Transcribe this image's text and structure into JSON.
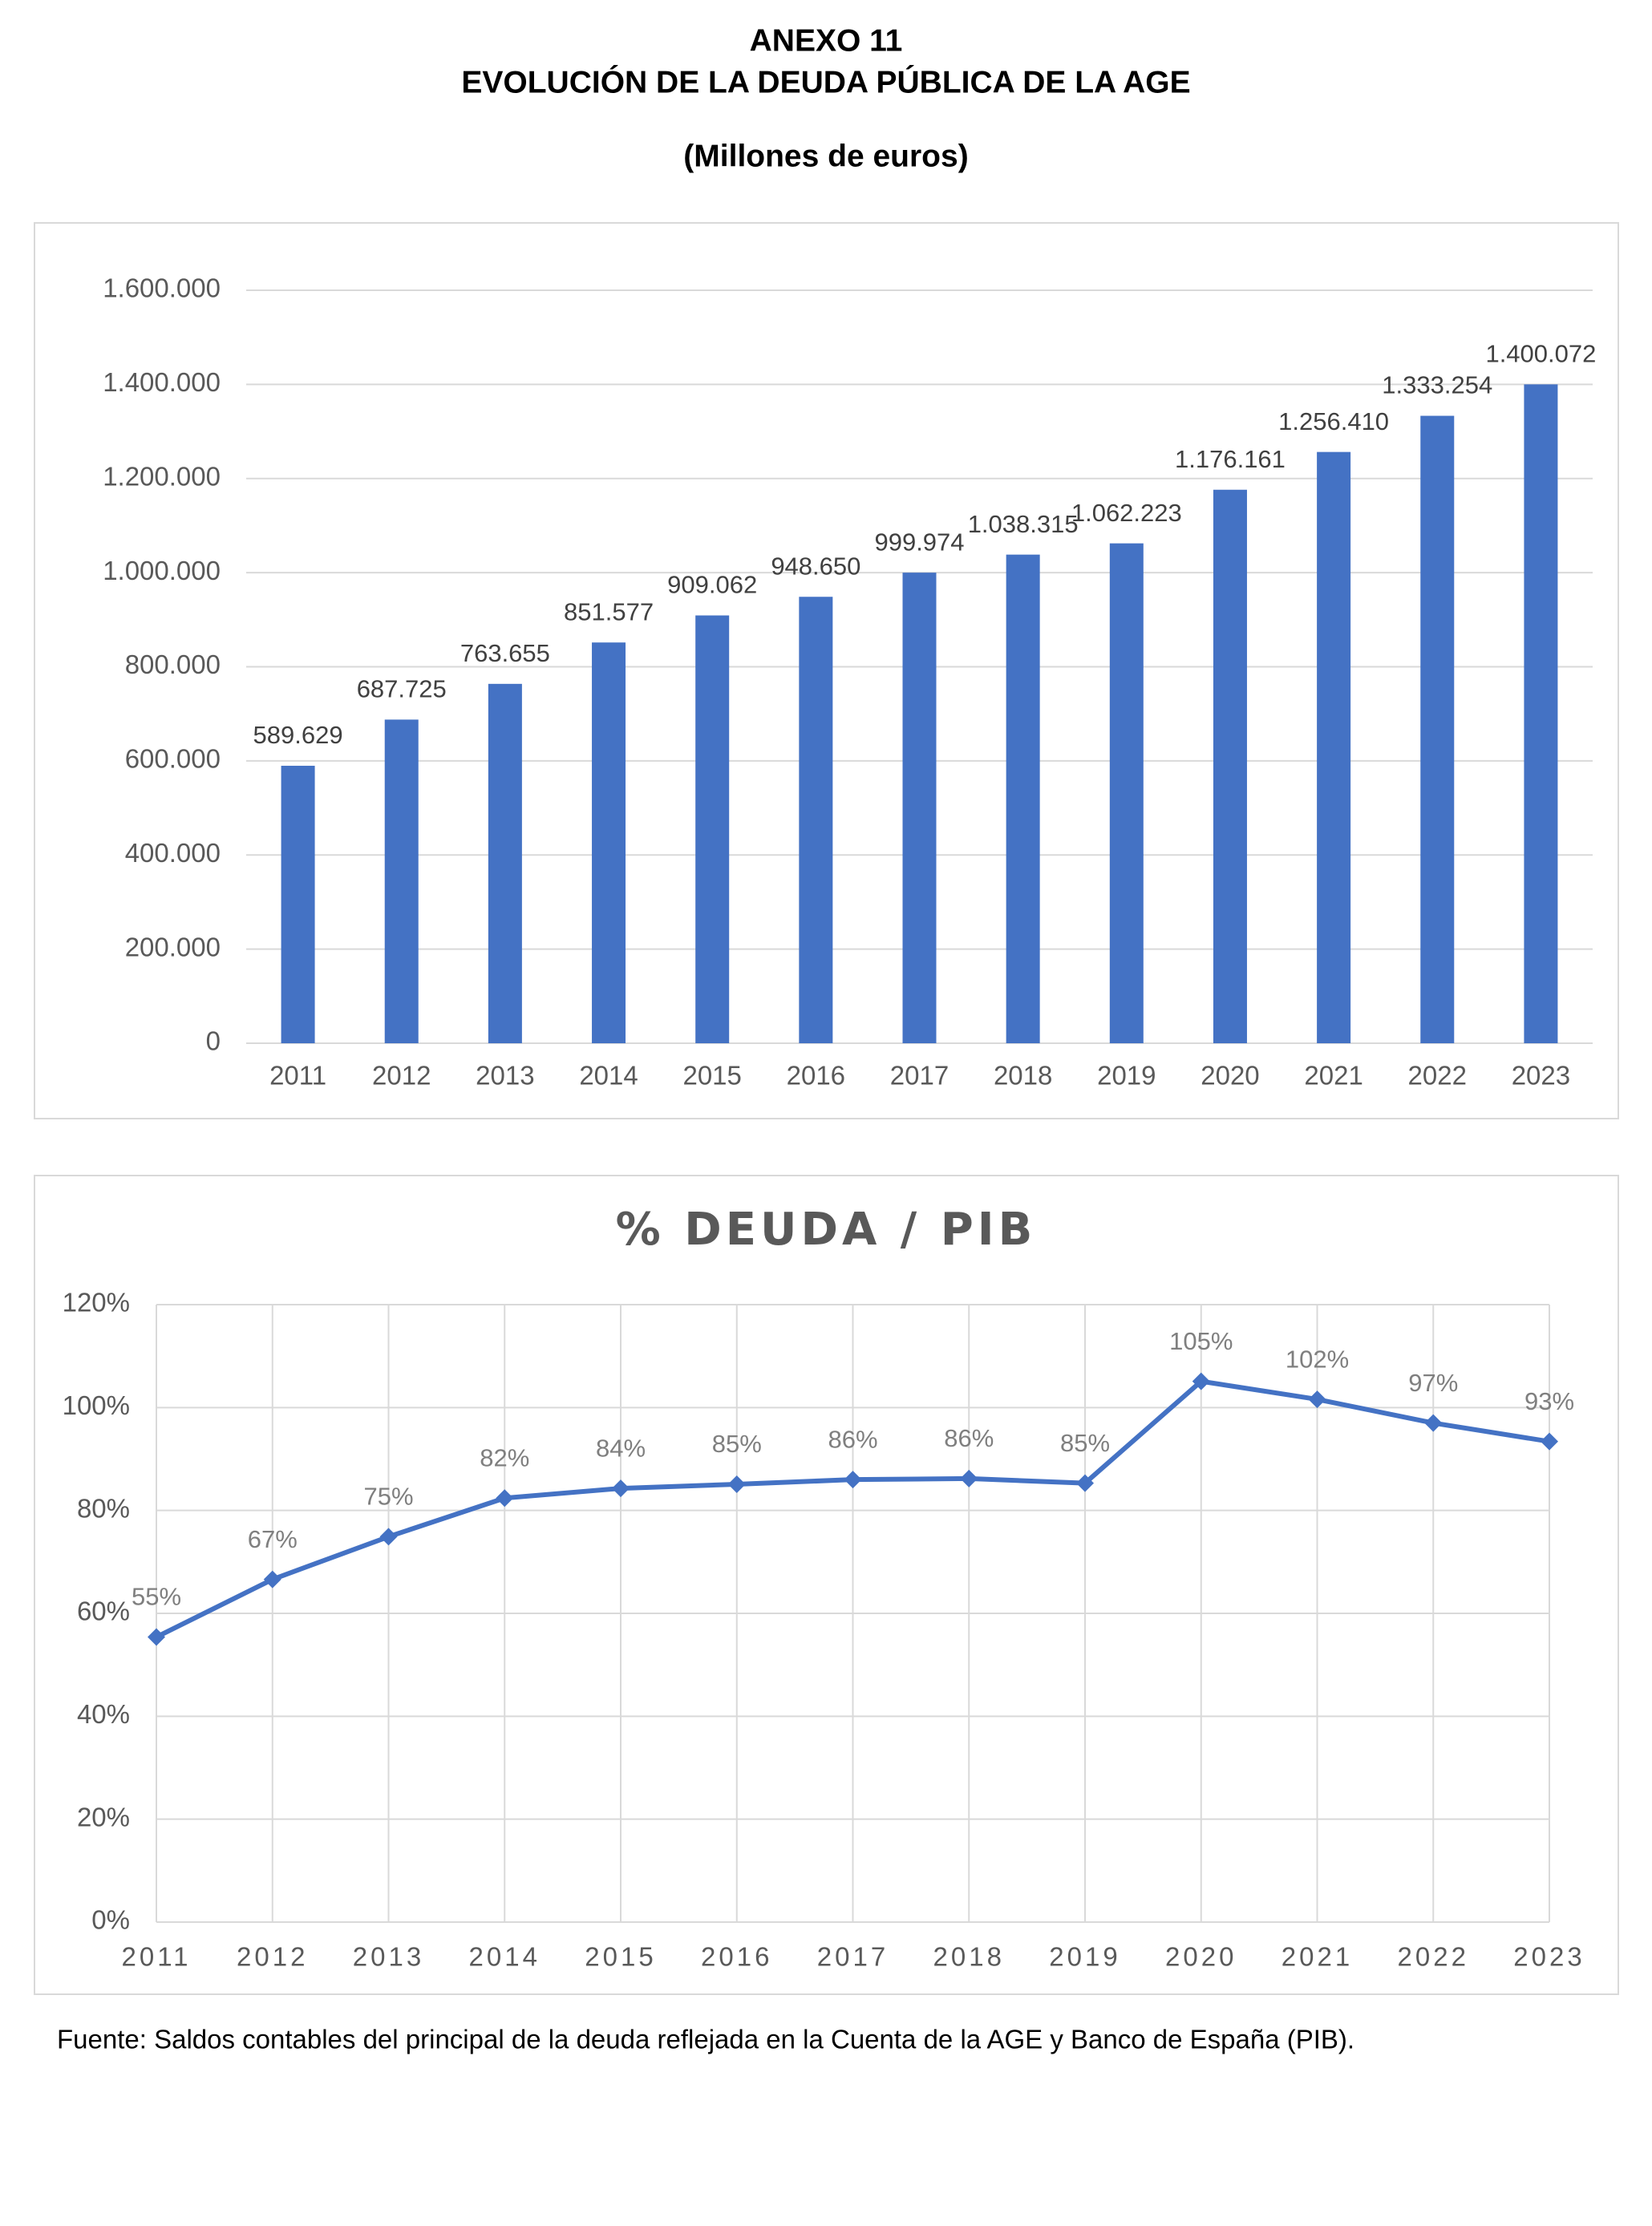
{
  "header": {
    "annex": "ANEXO 11",
    "title": "EVOLUCIÓN DE LA DEUDA PÚBLICA DE LA AGE",
    "subtitle": "(Millones de euros)"
  },
  "chart_data": [
    {
      "type": "bar",
      "categories": [
        "2011",
        "2012",
        "2013",
        "2014",
        "2015",
        "2016",
        "2017",
        "2018",
        "2019",
        "2020",
        "2021",
        "2022",
        "2023"
      ],
      "values": [
        589629,
        687725,
        763655,
        851577,
        909062,
        948650,
        999974,
        1038315,
        1062223,
        1176161,
        1256410,
        1333254,
        1400072
      ],
      "value_labels": [
        "589.629",
        "687.725",
        "763.655",
        "851.577",
        "909.062",
        "948.650",
        "999.974",
        "1.038.315",
        "1.062.223",
        "1.176.161",
        "1.256.410",
        "1.333.254",
        "1.400.072"
      ],
      "color": "#4472c4",
      "ylim": [
        0,
        1600000
      ],
      "yticks": [
        0,
        {
          "value": 200000,
          "label": "200.000"
        },
        {
          "value": 400000,
          "label": "400.000"
        },
        {
          "value": 600000,
          "label": "600.000"
        },
        {
          "value": 800000,
          "label": "800.000"
        },
        {
          "value": 1000000,
          "label": "1.000.000"
        },
        {
          "value": 1200000,
          "label": "1.200.000"
        },
        {
          "value": 1400000,
          "label": "1.400.000"
        },
        {
          "value": 1600000,
          "label": "1.600.000"
        }
      ],
      "grid": true
    },
    {
      "type": "line",
      "title": "% DEUDA / PIB",
      "categories": [
        "2011",
        "2012",
        "2013",
        "2014",
        "2015",
        "2016",
        "2017",
        "2018",
        "2019",
        "2020",
        "2021",
        "2022",
        "2023"
      ],
      "values": [
        55.4,
        66.6,
        74.9,
        82.4,
        84.3,
        85.1,
        86.0,
        86.2,
        85.3,
        105.1,
        101.6,
        97.0,
        93.4
      ],
      "value_labels": [
        "55%",
        "67%",
        "75%",
        "82%",
        "84%",
        "85%",
        "86%",
        "86%",
        "85%",
        "105%",
        "102%",
        "97%",
        "93%"
      ],
      "color": "#4472c4",
      "ylim": [
        0,
        120
      ],
      "yticks": [
        {
          "value": 0,
          "label": "0%"
        },
        {
          "value": 20,
          "label": "20%"
        },
        {
          "value": 40,
          "label": "40%"
        },
        {
          "value": 60,
          "label": "60%"
        },
        {
          "value": 80,
          "label": "80%"
        },
        {
          "value": 100,
          "label": "100%"
        },
        {
          "value": 120,
          "label": "120%"
        }
      ],
      "grid": true
    }
  ],
  "source": "Fuente: Saldos contables del principal de la deuda reflejada en la Cuenta de la AGE y Banco de España (PIB)."
}
